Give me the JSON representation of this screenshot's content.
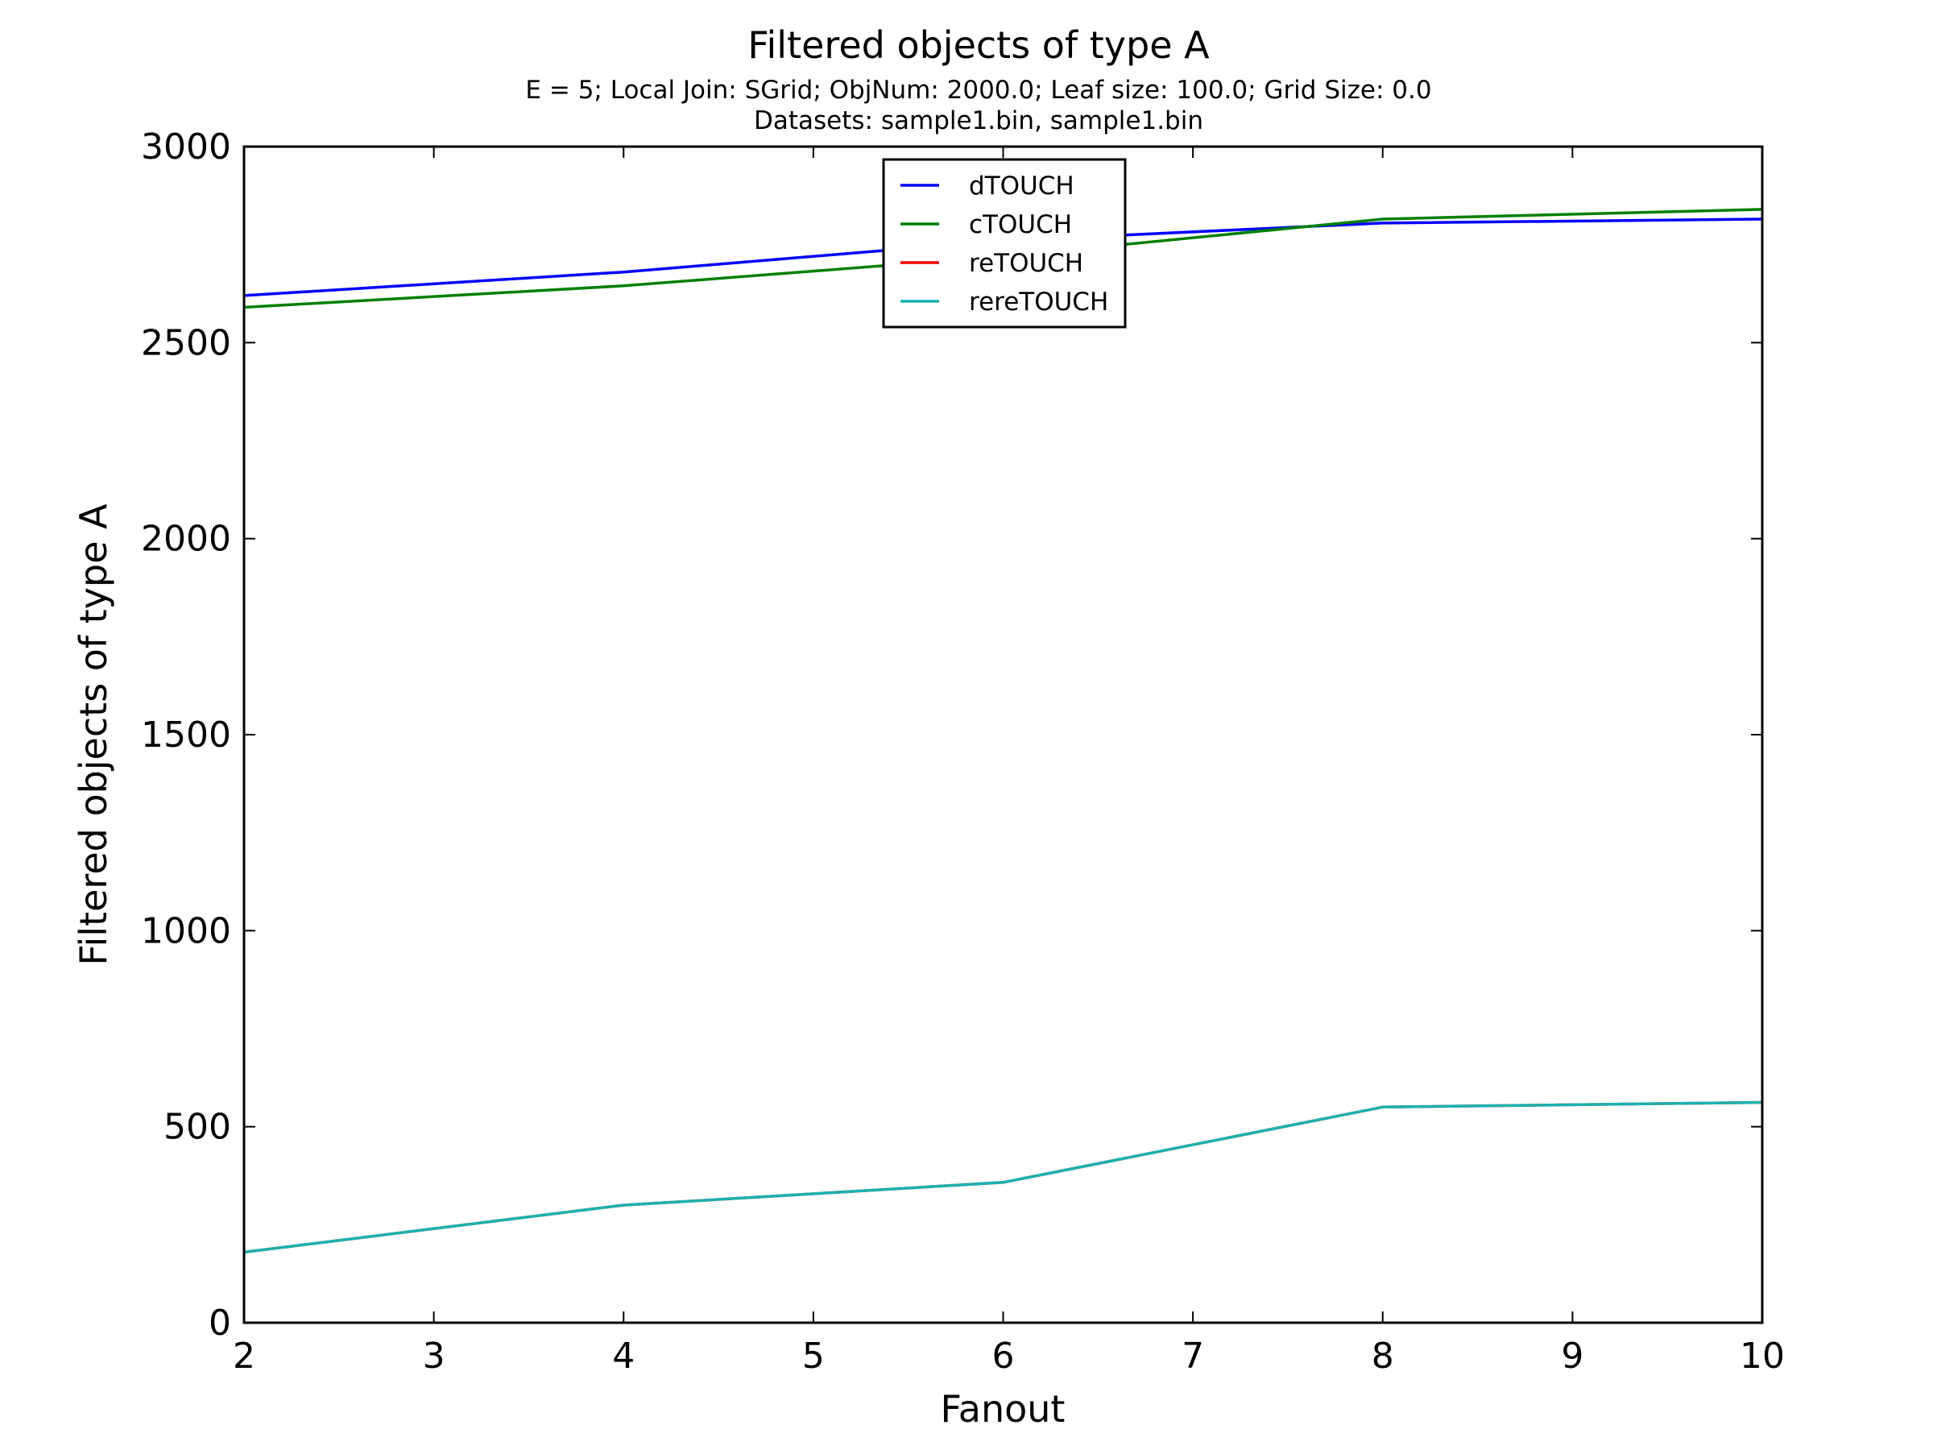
{
  "chart_data": {
    "type": "line",
    "title": "Filtered objects of type A",
    "subtitle_lines": [
      "E = 5; Local Join: SGrid; ObjNum: 2000.0; Leaf size: 100.0; Grid Size: 0.0",
      "Datasets: sample1.bin, sample1.bin"
    ],
    "xlabel": "Fanout",
    "ylabel": "Filtered objects of type A",
    "xlim": [
      2,
      10
    ],
    "ylim": [
      0,
      3000
    ],
    "xticks": [
      "2",
      "3",
      "4",
      "5",
      "6",
      "7",
      "8",
      "9",
      "10"
    ],
    "yticks": [
      "0",
      "500",
      "1000",
      "1500",
      "2000",
      "2500",
      "3000"
    ],
    "grid": false,
    "legend_position": "upper-center",
    "x": [
      2,
      4,
      6,
      8,
      10
    ],
    "series": [
      {
        "name": "dTOUCH",
        "color": "#0000ff",
        "values": [
          2620,
          2680,
          2760,
          2805,
          2815
        ]
      },
      {
        "name": "cTOUCH",
        "color": "#008000",
        "values": [
          2590,
          2645,
          2720,
          2815,
          2840
        ]
      },
      {
        "name": "reTOUCH",
        "color": "#ff0000",
        "values": [
          180,
          300,
          358,
          550,
          562
        ]
      },
      {
        "name": "rereTOUCH",
        "color": "#1ab2b2",
        "values": [
          180,
          300,
          358,
          550,
          562
        ]
      }
    ]
  }
}
